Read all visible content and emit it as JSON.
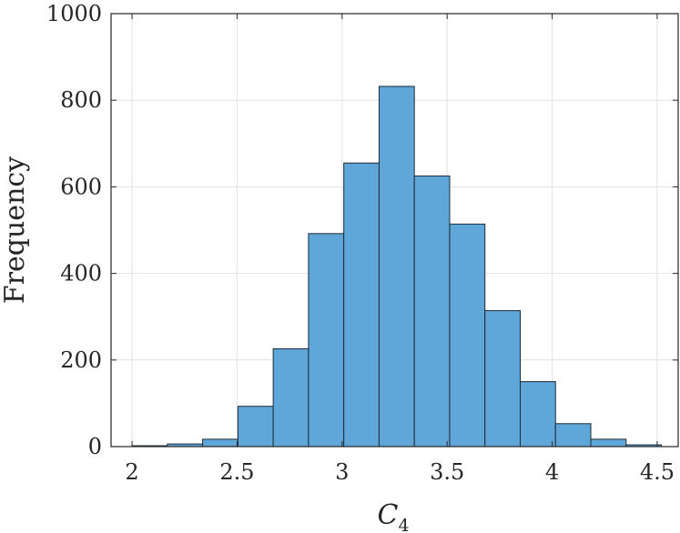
{
  "chart_data": {
    "type": "bar",
    "subtype": "histogram",
    "title": "",
    "xlabel": {
      "main": "C",
      "subscript": "4"
    },
    "ylabel": "Frequency",
    "xlim": [
      1.9,
      4.6
    ],
    "ylim": [
      0,
      1000
    ],
    "xticks": [
      2,
      2.5,
      3,
      3.5,
      4,
      4.5
    ],
    "xtick_labels": [
      "2",
      "2.5",
      "3",
      "3.5",
      "4",
      "4.5"
    ],
    "yticks": [
      0,
      200,
      400,
      600,
      800,
      1000
    ],
    "ytick_labels": [
      "0",
      "200",
      "400",
      "600",
      "800",
      "1000"
    ],
    "grid": true,
    "bin_edges": [
      2.0,
      2.168,
      2.336,
      2.504,
      2.672,
      2.84,
      3.008,
      3.176,
      3.344,
      3.512,
      3.68,
      3.848,
      4.016,
      4.184,
      4.352,
      4.52
    ],
    "values": [
      2,
      6,
      17,
      93,
      226,
      492,
      655,
      832,
      625,
      514,
      314,
      150,
      53,
      17,
      4
    ],
    "colors": {
      "bar_fill": "#5ea7d8",
      "bar_edge": "#1f2a36",
      "axis": "#262626",
      "grid": "#e2e2e2"
    }
  }
}
